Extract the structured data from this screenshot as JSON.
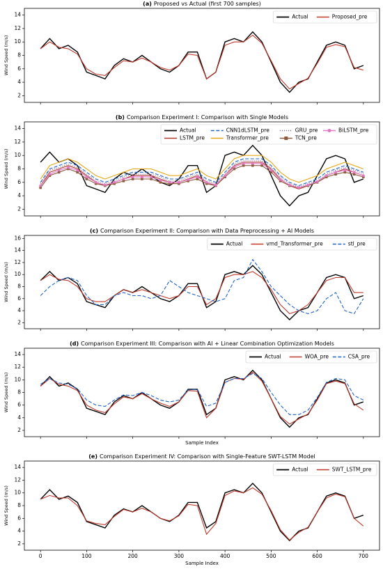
{
  "chart_data": [
    {
      "type": "line",
      "panel_label": "(a)",
      "title": "Proposed vs Actual (first 700 samples)",
      "ylabel": "Wind Speed (m/s)",
      "legend": "upper right",
      "x": [
        0,
        20,
        40,
        60,
        80,
        100,
        120,
        140,
        160,
        180,
        200,
        220,
        240,
        260,
        280,
        300,
        320,
        340,
        360,
        380,
        400,
        420,
        440,
        460,
        480,
        500,
        520,
        540,
        560,
        580,
        600,
        620,
        640,
        660,
        680,
        700
      ],
      "xlim": [
        -35,
        735
      ],
      "ylim": [
        1,
        15
      ],
      "yticks": [
        2,
        4,
        6,
        8,
        10,
        12,
        14
      ],
      "series": [
        {
          "name": "Actual",
          "color": "#000000",
          "linestyle": "solid",
          "values": [
            9,
            10.5,
            9,
            9.5,
            8.5,
            5.5,
            5,
            4.5,
            6.5,
            7.5,
            7,
            8,
            7,
            6,
            5.5,
            6.5,
            8.5,
            8.5,
            4.5,
            5.5,
            10,
            10.5,
            10,
            11.5,
            10,
            7,
            4,
            2.5,
            4,
            4.5,
            7,
            9.5,
            10,
            9.5,
            6,
            6.5
          ]
        },
        {
          "name": "Proposed_pre",
          "color": "#c0392b",
          "linestyle": "solid",
          "values": [
            9,
            10,
            9.2,
            9,
            8.2,
            6,
            5.2,
            5,
            6.2,
            7.2,
            7,
            7.6,
            7,
            6.2,
            5.8,
            6.5,
            8.2,
            8,
            4.5,
            5.5,
            9.5,
            10,
            10,
            11,
            9.8,
            7.2,
            4.5,
            3,
            3.8,
            4.6,
            6.8,
            9.2,
            9.6,
            9.3,
            6.2,
            5.8
          ]
        }
      ]
    },
    {
      "type": "line",
      "panel_label": "(b)",
      "title": "Comparison Experiment I: Comparison with Single Models",
      "ylabel": "Wind Speed (m/s)",
      "legend": "upper right",
      "x": [
        0,
        20,
        40,
        60,
        80,
        100,
        120,
        140,
        160,
        180,
        200,
        220,
        240,
        260,
        280,
        300,
        320,
        340,
        360,
        380,
        400,
        420,
        440,
        460,
        480,
        500,
        520,
        540,
        560,
        580,
        600,
        620,
        640,
        660,
        680,
        700
      ],
      "xlim": [
        -35,
        735
      ],
      "ylim": [
        1,
        15
      ],
      "yticks": [
        2,
        4,
        6,
        8,
        10,
        12,
        14
      ],
      "series": [
        {
          "name": "Actual",
          "color": "#000000",
          "linestyle": "solid",
          "values": [
            9,
            10.5,
            9,
            9.5,
            8.5,
            5.5,
            5,
            4.5,
            6.5,
            7.5,
            7,
            8,
            7,
            6,
            5.5,
            6.5,
            8.5,
            8.5,
            4.5,
            5.5,
            10,
            10.5,
            10,
            11.5,
            10,
            7,
            4,
            2.5,
            4,
            4.5,
            7,
            9.5,
            10,
            9.5,
            6,
            6.5
          ]
        },
        {
          "name": "LSTM_pre",
          "color": "#b03a2e",
          "linestyle": "solid",
          "values": [
            5.5,
            7.5,
            8,
            8.5,
            8,
            7,
            6,
            5.5,
            6,
            6.5,
            7,
            7,
            7,
            6.5,
            6,
            6,
            6.5,
            7,
            6,
            5.5,
            7,
            8.5,
            9,
            9,
            9,
            8,
            6.5,
            5.5,
            5,
            5.5,
            6,
            7,
            7.5,
            8,
            7.5,
            7
          ]
        },
        {
          "name": "CNN1dLSTM_pre",
          "color": "#1f63c6",
          "linestyle": "dashed",
          "values": [
            6,
            8,
            8.5,
            9,
            8.5,
            7.5,
            6.5,
            6,
            6.5,
            7,
            7.5,
            7.5,
            7.5,
            7,
            6.5,
            6.5,
            7,
            7.5,
            6.5,
            6,
            7.5,
            9,
            9.5,
            9.5,
            9.5,
            8.5,
            7,
            6,
            5.5,
            6,
            6.5,
            7.5,
            8,
            8.5,
            8,
            7.5
          ]
        },
        {
          "name": "Transformer_pre",
          "color": "#e6a817",
          "linestyle": "solid",
          "values": [
            6.5,
            8.5,
            9,
            9.5,
            9,
            8,
            7,
            6.5,
            7,
            7.5,
            8,
            8,
            8,
            7.5,
            7,
            7,
            7.5,
            8,
            7,
            6.5,
            8,
            9.5,
            10,
            10,
            10,
            9,
            7.5,
            6.5,
            6,
            6.5,
            7,
            8,
            8.5,
            9,
            8.5,
            8
          ]
        },
        {
          "name": "GRU_pre",
          "color": "#8e6a9a",
          "linestyle": "dotted",
          "values": [
            5.8,
            7.8,
            8.2,
            8.7,
            8.2,
            7.2,
            6.2,
            5.8,
            6.2,
            6.8,
            7.2,
            7.2,
            7.2,
            6.8,
            6.2,
            6.2,
            6.8,
            7.2,
            6.2,
            5.8,
            7.2,
            8.7,
            9.2,
            9.2,
            9.2,
            8.2,
            6.8,
            5.8,
            5.3,
            5.8,
            6.2,
            7.2,
            7.8,
            8.2,
            7.8,
            7.3
          ]
        },
        {
          "name": "TCN_pre",
          "color": "#8c5a3c",
          "linestyle": "solid",
          "marker": "square",
          "values": [
            5.2,
            7,
            7.5,
            8,
            7.5,
            6.5,
            5.8,
            5.5,
            5.8,
            6.2,
            6.5,
            6.5,
            6.5,
            6,
            5.8,
            5.8,
            6.2,
            6.5,
            5.8,
            5.5,
            6.8,
            8,
            8.5,
            8.5,
            8.5,
            7.5,
            6.2,
            5.5,
            5.2,
            5.5,
            6,
            6.8,
            7.2,
            7.5,
            7.2,
            6.8
          ]
        },
        {
          "name": "BiLSTM_pre",
          "color": "#e377c2",
          "linestyle": "solid",
          "marker": "circle",
          "values": [
            5.5,
            7.2,
            7.8,
            8.2,
            7.8,
            6.8,
            6,
            5.6,
            6,
            6.5,
            6.8,
            6.8,
            6.8,
            6.3,
            6,
            6,
            6.4,
            6.8,
            6,
            5.6,
            7,
            8.3,
            8.8,
            8.8,
            8.8,
            7.8,
            6.4,
            5.6,
            5.2,
            5.6,
            6.1,
            7,
            7.5,
            7.8,
            7.5,
            7
          ]
        }
      ]
    },
    {
      "type": "line",
      "panel_label": "(c)",
      "title": "Comparison Experiment II: Comparison with Data Preprocessing + AI Models",
      "ylabel": "Wind Speed (m/s)",
      "legend": "upper right",
      "x": [
        0,
        20,
        40,
        60,
        80,
        100,
        120,
        140,
        160,
        180,
        200,
        220,
        240,
        260,
        280,
        300,
        320,
        340,
        360,
        380,
        400,
        420,
        440,
        460,
        480,
        500,
        520,
        540,
        560,
        580,
        600,
        620,
        640,
        660,
        680,
        700
      ],
      "xlim": [
        -35,
        735
      ],
      "ylim": [
        1,
        16.5
      ],
      "yticks": [
        2,
        4,
        6,
        8,
        10,
        12,
        14,
        16
      ],
      "series": [
        {
          "name": "Actual",
          "color": "#000000",
          "linestyle": "solid",
          "values": [
            9,
            10.5,
            9,
            9.5,
            8.5,
            5.5,
            5,
            4.5,
            6.5,
            7.5,
            7,
            8,
            7,
            6,
            5.5,
            6.5,
            8.5,
            8.5,
            4.5,
            5.5,
            10,
            10.5,
            10,
            11.5,
            10,
            7,
            4,
            2.5,
            4,
            4.5,
            7,
            9.5,
            10,
            9.5,
            6,
            6.5
          ]
        },
        {
          "name": "vmd_Transformer_pre",
          "color": "#c0392b",
          "linestyle": "solid",
          "values": [
            9,
            10,
            9.2,
            9,
            8,
            6,
            5.5,
            5.5,
            6.5,
            7.5,
            7,
            7.5,
            7,
            6.5,
            6,
            6.5,
            8,
            8,
            5,
            6,
            9.5,
            10,
            10,
            10.5,
            9.5,
            7.5,
            5,
            3.5,
            4,
            5,
            7,
            9,
            9.5,
            9.5,
            7,
            7
          ]
        },
        {
          "name": "stl_pre",
          "color": "#1f63c6",
          "linestyle": "dashed",
          "values": [
            6.5,
            8,
            9,
            9.5,
            9,
            6.5,
            5,
            5,
            6.5,
            7,
            6.5,
            6.5,
            6,
            6.5,
            9,
            8,
            7,
            6.5,
            6,
            5.5,
            6,
            9,
            9.5,
            12.5,
            10.5,
            8,
            6.5,
            5,
            4,
            3.5,
            4,
            6,
            7,
            4,
            3.5,
            6
          ]
        }
      ]
    },
    {
      "type": "line",
      "panel_label": "(d)",
      "title": "Comparison Experiment III: Comparison with AI + Linear Combination Optimization Models",
      "ylabel": "Wind Speed (m/s)",
      "xlabel": "Sample Index",
      "legend": "upper right",
      "x": [
        0,
        20,
        40,
        60,
        80,
        100,
        120,
        140,
        160,
        180,
        200,
        220,
        240,
        260,
        280,
        300,
        320,
        340,
        360,
        380,
        400,
        420,
        440,
        460,
        480,
        500,
        520,
        540,
        560,
        580,
        600,
        620,
        640,
        660,
        680,
        700
      ],
      "xlim": [
        -35,
        735
      ],
      "ylim": [
        1,
        15
      ],
      "yticks": [
        2,
        4,
        6,
        8,
        10,
        12,
        14
      ],
      "series": [
        {
          "name": "Actual",
          "color": "#000000",
          "linestyle": "solid",
          "values": [
            9,
            10.5,
            9,
            9.5,
            8.5,
            5.5,
            5,
            4.5,
            6.5,
            7.5,
            7,
            8,
            7,
            6,
            5.5,
            6.5,
            8.5,
            8.5,
            4.5,
            5.5,
            10,
            10.5,
            10,
            11.5,
            10,
            7,
            4,
            2.5,
            4,
            4.5,
            7,
            9.5,
            10,
            9.5,
            6,
            6.5
          ]
        },
        {
          "name": "WOA_pre",
          "color": "#c0392b",
          "linestyle": "solid",
          "values": [
            9,
            10.2,
            9.3,
            9,
            8.3,
            6,
            5.2,
            4.8,
            6.2,
            7.3,
            7,
            7.8,
            7,
            6.3,
            5.8,
            6.5,
            8.3,
            8.2,
            4,
            5.5,
            9.6,
            10.2,
            10.1,
            11.2,
            9.8,
            7,
            4.2,
            3,
            3.8,
            4.6,
            6.8,
            9.4,
            9.8,
            9.4,
            6.2,
            5.2
          ]
        },
        {
          "name": "CSA_pre",
          "color": "#1f63c6",
          "linestyle": "dashed",
          "values": [
            9.3,
            10.2,
            9.5,
            9.3,
            8.6,
            6.8,
            6,
            5.8,
            6.8,
            7.6,
            7.5,
            8,
            7.5,
            6.8,
            6.5,
            6.8,
            8.4,
            8.5,
            5.8,
            6.3,
            9.6,
            10.2,
            10.2,
            11,
            10.2,
            8,
            6,
            4.5,
            4.5,
            5.2,
            7.2,
            9.6,
            10.2,
            10,
            7.5,
            6.8
          ]
        }
      ]
    },
    {
      "type": "line",
      "panel_label": "(e)",
      "title": "Comparison Experiment IV: Comparison with Single-Feature SWT-LSTM Model",
      "ylabel": "Wind Speed (m/s)",
      "xlabel": "Sample Index",
      "legend": "upper right",
      "x": [
        0,
        20,
        40,
        60,
        80,
        100,
        120,
        140,
        160,
        180,
        200,
        220,
        240,
        260,
        280,
        300,
        320,
        340,
        360,
        380,
        400,
        420,
        440,
        460,
        480,
        500,
        520,
        540,
        560,
        580,
        600,
        620,
        640,
        660,
        680,
        700
      ],
      "xlim": [
        -35,
        735
      ],
      "xticks": [
        0,
        100,
        200,
        300,
        400,
        500,
        600,
        700
      ],
      "ylim": [
        1,
        15
      ],
      "yticks": [
        2,
        4,
        6,
        8,
        10,
        12,
        14
      ],
      "series": [
        {
          "name": "Actual",
          "color": "#000000",
          "linestyle": "solid",
          "values": [
            9,
            10.5,
            9,
            9.5,
            8.5,
            5.5,
            5,
            4.5,
            6.5,
            7.5,
            7,
            8,
            7,
            6,
            5.5,
            6.5,
            8.5,
            8.5,
            4.5,
            5.5,
            10,
            10.5,
            10,
            11.5,
            10,
            7,
            4,
            2.5,
            4,
            4.5,
            7,
            9.5,
            10,
            9.5,
            6,
            6.5
          ]
        },
        {
          "name": "SWT_LSTM_pre",
          "color": "#c0392b",
          "linestyle": "solid",
          "values": [
            9,
            9.6,
            9.2,
            9.2,
            8,
            5.6,
            5.2,
            5,
            6.3,
            7.4,
            7,
            7.6,
            7,
            6,
            5.6,
            6.4,
            8.2,
            8,
            3.5,
            5.2,
            9.6,
            10.3,
            10,
            10.8,
            9.8,
            7.2,
            4.2,
            2.6,
            3.8,
            4.6,
            7,
            9.2,
            9.8,
            9.4,
            6,
            4.8
          ]
        }
      ]
    }
  ]
}
